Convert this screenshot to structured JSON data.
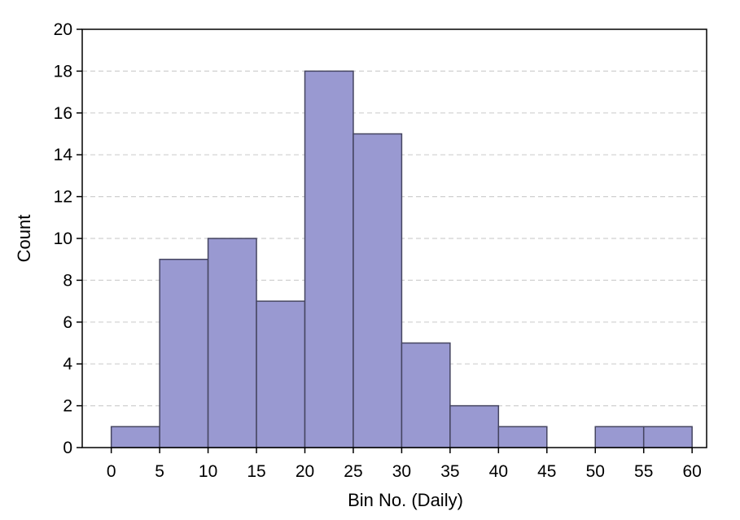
{
  "chart_data": {
    "type": "bar",
    "subtype": "histogram",
    "title": "",
    "xlabel": "Bin No. (Daily)",
    "ylabel": "Count",
    "bin_width": 5,
    "bins": [
      {
        "start": 0,
        "end": 5,
        "count": 1
      },
      {
        "start": 5,
        "end": 10,
        "count": 9
      },
      {
        "start": 10,
        "end": 15,
        "count": 10
      },
      {
        "start": 15,
        "end": 20,
        "count": 7
      },
      {
        "start": 20,
        "end": 25,
        "count": 18
      },
      {
        "start": 25,
        "end": 30,
        "count": 15
      },
      {
        "start": 30,
        "end": 35,
        "count": 5
      },
      {
        "start": 35,
        "end": 40,
        "count": 2
      },
      {
        "start": 40,
        "end": 45,
        "count": 1
      },
      {
        "start": 45,
        "end": 50,
        "count": 0
      },
      {
        "start": 50,
        "end": 55,
        "count": 1
      },
      {
        "start": 55,
        "end": 60,
        "count": 1
      }
    ],
    "xlim": [
      -3,
      61.5
    ],
    "ylim": [
      0,
      20
    ],
    "xticks": [
      0,
      5,
      10,
      15,
      20,
      25,
      30,
      35,
      40,
      45,
      50,
      55,
      60
    ],
    "yticks": [
      0,
      2,
      4,
      6,
      8,
      10,
      12,
      14,
      16,
      18,
      20
    ],
    "grid": {
      "axis": "y",
      "style": "dashed"
    },
    "colors": {
      "bar_fill": "#9999d1",
      "bar_edge": "#454560",
      "grid": "#d0d0d0",
      "axes": "#000000"
    }
  }
}
